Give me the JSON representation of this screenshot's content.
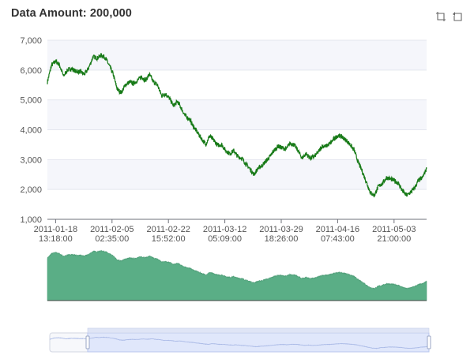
{
  "title": "Data Amount: 200,000",
  "toolbox": {
    "zoom_icon": "data-zoom-icon",
    "back_icon": "zoom-reset-icon"
  },
  "colors": {
    "line": "#177a17",
    "area": "#5aae86",
    "band": "#f5f6fb",
    "slider_fill": "#dce4fa",
    "slider_border": "#b8c6ee",
    "slider_shadow": "#a9b9e6"
  },
  "chart_data": {
    "type": "line",
    "title": "Data Amount: 200,000",
    "xlabel": "",
    "ylabel": "",
    "ylim": [
      1000,
      7000
    ],
    "yticks": [
      1000,
      2000,
      3000,
      4000,
      5000,
      6000,
      7000
    ],
    "ytick_labels": [
      "1,000",
      "2,000",
      "3,000",
      "4,000",
      "5,000",
      "6,000",
      "7,000"
    ],
    "x_start": "2011-01-16 00:00:00",
    "x_end": "2011-05-14 00:00:00",
    "xticks": [
      {
        "time": "2011-01-18 13:18:00",
        "label": [
          "2011-01-18",
          "13:18:00"
        ]
      },
      {
        "time": "2011-02-05 02:35:00",
        "label": [
          "2011-02-05",
          "02:35:00"
        ]
      },
      {
        "time": "2011-02-22 15:52:00",
        "label": [
          "2011-02-22",
          "15:52:00"
        ]
      },
      {
        "time": "2011-03-12 05:09:00",
        "label": [
          "2011-03-12",
          "05:09:00"
        ]
      },
      {
        "time": "2011-03-29 18:26:00",
        "label": [
          "2011-03-29",
          "18:26:00"
        ]
      },
      {
        "time": "2011-04-16 07:43:00",
        "label": [
          "2011-04-16",
          "07:43:00"
        ]
      },
      {
        "time": "2011-05-03 21:00:00",
        "label": [
          "2011-05-03",
          "21:00:00"
        ]
      }
    ],
    "series": [
      {
        "points": [
          [
            "2011-01-16 00:00",
            5600
          ],
          [
            "2011-01-17 06:00",
            6150
          ],
          [
            "2011-01-18 12:00",
            6300
          ],
          [
            "2011-01-19 18:00",
            6180
          ],
          [
            "2011-01-21 00:00",
            5800
          ],
          [
            "2011-01-22 06:00",
            6000
          ],
          [
            "2011-01-23 12:00",
            6050
          ],
          [
            "2011-01-25 00:00",
            5950
          ],
          [
            "2011-01-26 06:00",
            5950
          ],
          [
            "2011-01-27 12:00",
            5850
          ],
          [
            "2011-01-28 18:00",
            6050
          ],
          [
            "2011-01-30 06:00",
            6450
          ],
          [
            "2011-01-31 12:00",
            6400
          ],
          [
            "2011-02-01 18:00",
            6500
          ],
          [
            "2011-02-03 00:00",
            6420
          ],
          [
            "2011-02-04 06:00",
            6150
          ],
          [
            "2011-02-05 12:00",
            5850
          ],
          [
            "2011-02-06 18:00",
            5350
          ],
          [
            "2011-02-08 00:00",
            5250
          ],
          [
            "2011-02-09 06:00",
            5500
          ],
          [
            "2011-02-10 12:00",
            5600
          ],
          [
            "2011-02-11 18:00",
            5550
          ],
          [
            "2011-02-13 00:00",
            5650
          ],
          [
            "2011-02-14 06:00",
            5780
          ],
          [
            "2011-02-15 12:00",
            5650
          ],
          [
            "2011-02-16 18:00",
            5850
          ],
          [
            "2011-02-18 00:00",
            5600
          ],
          [
            "2011-02-19 06:00",
            5500
          ],
          [
            "2011-02-20 12:00",
            5150
          ],
          [
            "2011-02-21 18:00",
            5200
          ],
          [
            "2011-02-23 00:00",
            5050
          ],
          [
            "2011-02-24 06:00",
            4800
          ],
          [
            "2011-02-25 12:00",
            4950
          ],
          [
            "2011-02-26 18:00",
            4700
          ],
          [
            "2011-02-28 00:00",
            4450
          ],
          [
            "2011-03-01 06:00",
            4350
          ],
          [
            "2011-03-02 12:00",
            4100
          ],
          [
            "2011-03-03 18:00",
            3900
          ],
          [
            "2011-03-05 00:00",
            3700
          ],
          [
            "2011-03-06 06:00",
            3500
          ],
          [
            "2011-03-07 12:00",
            3800
          ],
          [
            "2011-03-08 18:00",
            3650
          ],
          [
            "2011-03-10 00:00",
            3480
          ],
          [
            "2011-03-11 06:00",
            3500
          ],
          [
            "2011-03-12 12:00",
            3300
          ],
          [
            "2011-03-13 18:00",
            3200
          ],
          [
            "2011-03-15 00:00",
            3300
          ],
          [
            "2011-03-16 06:00",
            3100
          ],
          [
            "2011-03-17 12:00",
            3050
          ],
          [
            "2011-03-18 18:00",
            2850
          ],
          [
            "2011-03-20 00:00",
            2700
          ],
          [
            "2011-03-21 06:00",
            2500
          ],
          [
            "2011-03-22 12:00",
            2700
          ],
          [
            "2011-03-23 18:00",
            2800
          ],
          [
            "2011-03-25 00:00",
            2950
          ],
          [
            "2011-03-26 06:00",
            3100
          ],
          [
            "2011-03-27 12:00",
            3300
          ],
          [
            "2011-03-28 18:00",
            3450
          ],
          [
            "2011-03-30 00:00",
            3400
          ],
          [
            "2011-03-31 06:00",
            3350
          ],
          [
            "2011-04-01 12:00",
            3550
          ],
          [
            "2011-04-02 18:00",
            3500
          ],
          [
            "2011-04-04 00:00",
            3300
          ],
          [
            "2011-04-05 06:00",
            3050
          ],
          [
            "2011-04-06 12:00",
            3200
          ],
          [
            "2011-04-07 18:00",
            3050
          ],
          [
            "2011-04-09 00:00",
            3100
          ],
          [
            "2011-04-10 06:00",
            3250
          ],
          [
            "2011-04-11 12:00",
            3450
          ],
          [
            "2011-04-12 18:00",
            3450
          ],
          [
            "2011-04-14 00:00",
            3550
          ],
          [
            "2011-04-15 06:00",
            3700
          ],
          [
            "2011-04-16 12:00",
            3820
          ],
          [
            "2011-04-17 18:00",
            3750
          ],
          [
            "2011-04-19 00:00",
            3650
          ],
          [
            "2011-04-20 06:00",
            3500
          ],
          [
            "2011-04-21 12:00",
            3300
          ],
          [
            "2011-04-22 18:00",
            2900
          ],
          [
            "2011-04-24 00:00",
            2600
          ],
          [
            "2011-04-25 06:00",
            2250
          ],
          [
            "2011-04-26 12:00",
            1900
          ],
          [
            "2011-04-27 18:00",
            1800
          ],
          [
            "2011-04-29 00:00",
            2100
          ],
          [
            "2011-04-30 06:00",
            2200
          ],
          [
            "2011-05-01 12:00",
            2400
          ],
          [
            "2011-05-02 18:00",
            2350
          ],
          [
            "2011-05-04 00:00",
            2300
          ],
          [
            "2011-05-05 06:00",
            2200
          ],
          [
            "2011-05-06 12:00",
            1950
          ],
          [
            "2011-05-07 18:00",
            1800
          ],
          [
            "2011-05-09 00:00",
            1900
          ],
          [
            "2011-05-10 06:00",
            2050
          ],
          [
            "2011-05-11 12:00",
            2300
          ],
          [
            "2011-05-12 18:00",
            2400
          ],
          [
            "2011-05-14 00:00",
            2700
          ]
        ]
      }
    ],
    "grid": true,
    "legend": "none",
    "data_zoom": {
      "inside_overview_area": true,
      "slider_range": [
        0.1,
        1.0
      ]
    }
  }
}
